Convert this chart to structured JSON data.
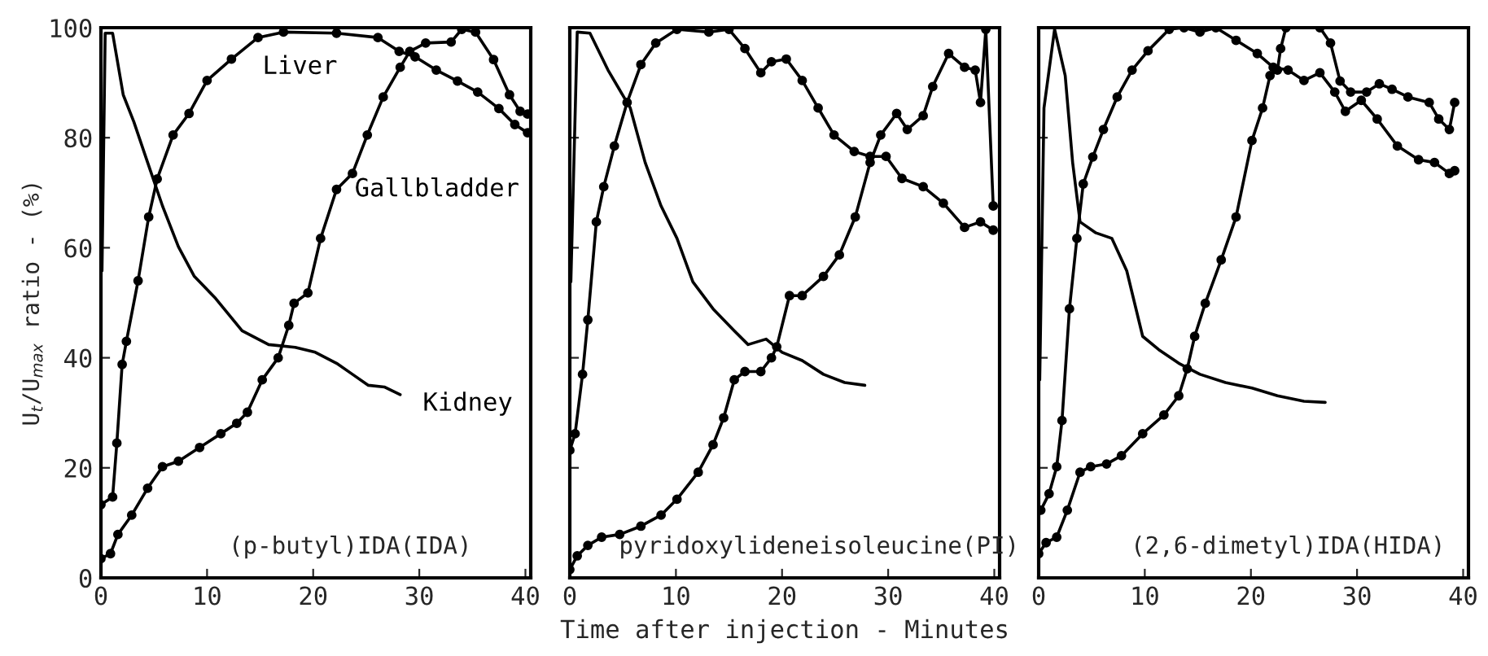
{
  "chart_data": [
    {
      "type": "line",
      "ylabel": "U$_{t}$/U$_{max}$ ratio - (%)",
      "xlim": [
        0,
        40.5
      ],
      "ylim": [
        0,
        100
      ],
      "xticks": [
        0,
        10,
        20,
        30,
        40
      ],
      "yticks": [
        0,
        20,
        40,
        60,
        80,
        100
      ],
      "grid": false,
      "legend": false,
      "annotations": [
        "(p-butyl)IDA(IDA)"
      ],
      "series": [
        {
          "name": "Liver",
          "color": "#000000",
          "marker": "circle",
          "x": [
            0,
            1.1,
            1.5,
            2,
            2.4,
            3.5,
            4.5,
            5.3,
            6.8,
            8.3,
            10,
            12.3,
            14.8,
            17.2,
            22.2,
            26.1,
            28.1,
            29.6,
            31.6,
            33.6,
            35.5,
            37.5,
            39,
            40.2
          ],
          "values": [
            13.3,
            14.7,
            24.5,
            38.8,
            43,
            54,
            65.6,
            72.5,
            80.5,
            84.4,
            90.4,
            94.3,
            98.2,
            99.2,
            99,
            98.2,
            95.7,
            94.7,
            92.3,
            90.3,
            88.3,
            85.3,
            82.4,
            80.9
          ]
        },
        {
          "name": "Gallbladder",
          "color": "#000000",
          "marker": "circle",
          "x": [
            0,
            0.9,
            1.6,
            2.9,
            4.4,
            5.8,
            7.3,
            9.3,
            11.3,
            12.8,
            13.8,
            15.2,
            16.7,
            17.7,
            18.2,
            19.5,
            20.7,
            22.2,
            23.7,
            25.1,
            26.6,
            28.2,
            29.1,
            30.6,
            33,
            34,
            35.3,
            37,
            38.5,
            39.5,
            40.2
          ],
          "values": [
            3.5,
            4.4,
            7.9,
            11.4,
            16.3,
            20.2,
            21.2,
            23.7,
            26.2,
            28.1,
            30.1,
            36,
            40,
            45.9,
            49.9,
            51.8,
            61.7,
            70.6,
            73.5,
            80.5,
            87.4,
            92.8,
            95.7,
            97.2,
            97.4,
            99.7,
            99.2,
            94.2,
            87.8,
            84.8,
            84.3
          ]
        },
        {
          "name": "Kidney",
          "color": "#000000",
          "marker": "none",
          "x": [
            0.1,
            0.4,
            1.1,
            2.1,
            3.1,
            4.4,
            5.8,
            7.3,
            8.8,
            10.8,
            13.3,
            15.8,
            18.3,
            20.2,
            22.2,
            23.7,
            25.2,
            26.7,
            28.2
          ],
          "values": [
            55.8,
            99,
            99,
            87.8,
            82.9,
            75.5,
            67.6,
            60.2,
            54.8,
            50.8,
            44.9,
            42.4,
            41.9,
            41,
            39,
            37,
            35,
            34.7,
            33.3
          ]
        }
      ]
    },
    {
      "type": "line",
      "xlabel": "Time after injection - Minutes",
      "xlim": [
        0,
        40.5
      ],
      "ylim": [
        0,
        100
      ],
      "xticks": [
        0,
        10,
        20,
        30,
        40
      ],
      "yticks": [
        0,
        20,
        40,
        60,
        80,
        100
      ],
      "tick_labels": "x",
      "grid": false,
      "legend": false,
      "annotations": [
        "pyridoxylideneisoleucine(PI)"
      ],
      "series": [
        {
          "color": "#000000",
          "marker": "circle",
          "x": [
            0,
            0.5,
            1.2,
            1.7,
            2.5,
            3.2,
            4.2,
            5.4,
            6.7,
            8.1,
            10.1,
            13.1,
            15,
            16.5,
            18,
            19,
            20.4,
            21.9,
            23.4,
            24.9,
            26.8,
            28.3,
            29.8,
            31.3,
            33.3,
            35.2,
            37.2,
            38.7,
            39.9
          ],
          "values": [
            23.2,
            26.2,
            37,
            46.9,
            64.7,
            71.1,
            78.5,
            86.4,
            93.3,
            97.2,
            99.7,
            99.2,
            99.7,
            96.2,
            91.8,
            93.8,
            94.3,
            90.4,
            85.4,
            80.5,
            77.5,
            76.6,
            76.6,
            72.6,
            71.1,
            68.1,
            63.7,
            64.7,
            63.2
          ]
        },
        {
          "color": "#000000",
          "marker": "circle",
          "x": [
            0,
            0.7,
            1.7,
            3,
            4.7,
            6.7,
            8.6,
            10.1,
            12.1,
            13.5,
            14.5,
            15.5,
            16.5,
            18,
            19,
            19.5,
            20.7,
            21.9,
            23.9,
            25.4,
            26.9,
            28.3,
            29.3,
            30.8,
            31.8,
            33.3,
            34.2,
            35.7,
            37.2,
            38.2,
            38.7,
            39.2,
            39.9
          ],
          "values": [
            1.5,
            4,
            5.9,
            7.4,
            7.9,
            9.4,
            11.4,
            14.3,
            19.2,
            24.2,
            29.1,
            36,
            37.5,
            37.5,
            40,
            42,
            51.3,
            51.3,
            54.8,
            58.7,
            65.6,
            75.5,
            80.5,
            84.4,
            81.5,
            84,
            89.3,
            95.3,
            92.8,
            92.3,
            86.4,
            99.7,
            67.6
          ]
        },
        {
          "color": "#000000",
          "marker": "none",
          "x": [
            0.1,
            0.7,
            1.9,
            3.6,
            5.7,
            7.1,
            8.6,
            10.1,
            11.6,
            13.5,
            15.5,
            16.8,
            18.5,
            20,
            21.9,
            23.9,
            25.9,
            27.8
          ],
          "values": [
            53.8,
            99.2,
            99,
            92.3,
            85.4,
            75.5,
            67.6,
            61.7,
            53.8,
            48.9,
            44.9,
            42.4,
            43.4,
            41,
            39.5,
            37,
            35.5,
            35
          ]
        }
      ]
    },
    {
      "type": "line",
      "xlim": [
        0,
        40.5
      ],
      "ylim": [
        0,
        100
      ],
      "xticks": [
        0,
        10,
        20,
        30,
        40
      ],
      "yticks": [
        0,
        20,
        40,
        60,
        80,
        100
      ],
      "tick_labels": "x",
      "grid": false,
      "legend": false,
      "annotations": [
        "(2,6-dimetyl)IDA(HIDA)"
      ],
      "series": [
        {
          "color": "#000000",
          "marker": "circle",
          "x": [
            0.2,
            0.98,
            1.7,
            2.2,
            2.9,
            3.6,
            4.2,
            5.1,
            6.1,
            7.4,
            8.8,
            10.3,
            12.3,
            13.7,
            15.2,
            16.7,
            18.6,
            20.6,
            22.1,
            23.5,
            25,
            26.5,
            27.9,
            28.9,
            30.4,
            31.9,
            33.8,
            35.8,
            37.3,
            38.7,
            39.2
          ],
          "values": [
            12.3,
            15.3,
            20.2,
            28.6,
            48.9,
            61.7,
            71.6,
            76.5,
            81.5,
            87.4,
            92.3,
            95.8,
            99.7,
            100,
            99.2,
            100,
            97.7,
            95.3,
            92.8,
            92.3,
            90.4,
            91.8,
            88.3,
            84.8,
            86.8,
            83.4,
            78.5,
            76,
            75.5,
            73.5,
            74
          ]
        },
        {
          "color": "#000000",
          "marker": "circle",
          "x": [
            0,
            0.7,
            1.7,
            2.7,
            3.9,
            4.9,
            6.4,
            7.8,
            9.8,
            11.8,
            13.2,
            14,
            14.7,
            15.7,
            17.2,
            18.6,
            20.1,
            21.1,
            21.8,
            22.5,
            22.8,
            23.3,
            26.5,
            27.5,
            28.4,
            29.4,
            30.9,
            32.1,
            33.3,
            34.8,
            36.8,
            37.7,
            38.7,
            39.2
          ],
          "values": [
            4.4,
            6.4,
            7.4,
            12.3,
            19.2,
            20.2,
            20.7,
            22.2,
            26.2,
            29.6,
            33.1,
            38,
            43.9,
            49.9,
            57.8,
            65.6,
            79.5,
            85.4,
            91.3,
            92.3,
            96.2,
            100,
            100,
            97.2,
            90.3,
            88.3,
            88.3,
            89.8,
            88.8,
            87.4,
            86.4,
            83.4,
            81.5,
            86.4
          ]
        },
        {
          "color": "#000000",
          "marker": "none",
          "x": [
            0.1,
            0.5,
            1.5,
            2.5,
            3.2,
            3.9,
            5.4,
            6.9,
            8.3,
            9.8,
            11.3,
            13.2,
            15.2,
            17.6,
            20.1,
            22.5,
            25,
            27
          ],
          "values": [
            36,
            85.4,
            99.7,
            91.3,
            75.5,
            64.7,
            62.7,
            61.7,
            55.8,
            43.9,
            41.5,
            39,
            37,
            35.5,
            34.5,
            33.1,
            32.1,
            31.9
          ]
        }
      ]
    }
  ]
}
